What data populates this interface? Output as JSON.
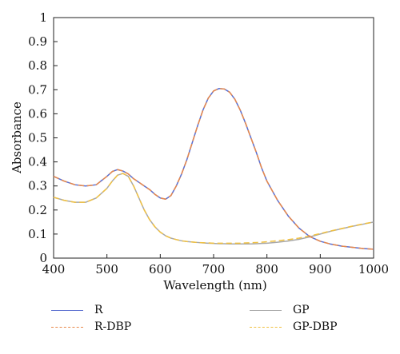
{
  "chart_data": {
    "type": "line",
    "title": "",
    "xlabel": "Wavelength (nm)",
    "ylabel": "Absorbance",
    "xlim": [
      400,
      1000
    ],
    "ylim": [
      0,
      1
    ],
    "grid": false,
    "legend_position": "bottom",
    "x_ticks": [
      "400",
      "500",
      "600",
      "700",
      "800",
      "900",
      "1000"
    ],
    "y_ticks": [
      "0",
      "0.1",
      "0.2",
      "0.3",
      "0.4",
      "0.5",
      "0.6",
      "0.7",
      "0.8",
      "0.9",
      "1"
    ],
    "x": [
      400,
      420,
      440,
      460,
      480,
      500,
      510,
      520,
      530,
      540,
      550,
      560,
      570,
      580,
      590,
      600,
      610,
      620,
      630,
      640,
      650,
      660,
      670,
      680,
      690,
      700,
      710,
      720,
      730,
      740,
      750,
      760,
      770,
      780,
      790,
      800,
      820,
      840,
      860,
      880,
      900,
      920,
      940,
      960,
      980,
      1000
    ],
    "series": [
      {
        "name": "R",
        "color": "#5b6fd0",
        "dash": "solid",
        "values": [
          0.34,
          0.32,
          0.305,
          0.3,
          0.305,
          0.34,
          0.36,
          0.368,
          0.362,
          0.35,
          0.33,
          0.315,
          0.3,
          0.285,
          0.265,
          0.25,
          0.245,
          0.26,
          0.3,
          0.35,
          0.41,
          0.48,
          0.55,
          0.615,
          0.665,
          0.695,
          0.705,
          0.703,
          0.69,
          0.66,
          0.615,
          0.56,
          0.5,
          0.44,
          0.375,
          0.32,
          0.24,
          0.175,
          0.125,
          0.09,
          0.07,
          0.058,
          0.05,
          0.045,
          0.04,
          0.037
        ]
      },
      {
        "name": "R-DBP",
        "color": "#e8884a",
        "dash": "dashed",
        "values": [
          0.34,
          0.32,
          0.305,
          0.3,
          0.305,
          0.34,
          0.36,
          0.368,
          0.362,
          0.35,
          0.33,
          0.315,
          0.3,
          0.285,
          0.265,
          0.25,
          0.245,
          0.26,
          0.3,
          0.35,
          0.41,
          0.48,
          0.55,
          0.615,
          0.665,
          0.695,
          0.705,
          0.703,
          0.69,
          0.66,
          0.615,
          0.56,
          0.5,
          0.44,
          0.375,
          0.32,
          0.24,
          0.175,
          0.125,
          0.09,
          0.07,
          0.058,
          0.05,
          0.045,
          0.04,
          0.037
        ]
      },
      {
        "name": "GP",
        "color": "#a8a8a8",
        "dash": "solid",
        "values": [
          0.253,
          0.24,
          0.232,
          0.232,
          0.25,
          0.29,
          0.32,
          0.345,
          0.352,
          0.34,
          0.3,
          0.25,
          0.2,
          0.16,
          0.13,
          0.108,
          0.093,
          0.083,
          0.077,
          0.072,
          0.069,
          0.067,
          0.065,
          0.063,
          0.062,
          0.061,
          0.06,
          0.06,
          0.059,
          0.059,
          0.059,
          0.059,
          0.059,
          0.06,
          0.061,
          0.062,
          0.066,
          0.071,
          0.078,
          0.088,
          0.1,
          0.112,
          0.122,
          0.132,
          0.141,
          0.15
        ]
      },
      {
        "name": "GP-DBP",
        "color": "#f0c040",
        "dash": "dashed",
        "values": [
          0.253,
          0.24,
          0.232,
          0.232,
          0.25,
          0.29,
          0.32,
          0.345,
          0.352,
          0.34,
          0.3,
          0.25,
          0.2,
          0.16,
          0.13,
          0.108,
          0.093,
          0.083,
          0.077,
          0.072,
          0.069,
          0.067,
          0.065,
          0.064,
          0.063,
          0.062,
          0.062,
          0.062,
          0.062,
          0.062,
          0.062,
          0.063,
          0.064,
          0.065,
          0.066,
          0.068,
          0.072,
          0.077,
          0.083,
          0.092,
          0.102,
          0.113,
          0.123,
          0.133,
          0.142,
          0.15
        ]
      }
    ]
  }
}
